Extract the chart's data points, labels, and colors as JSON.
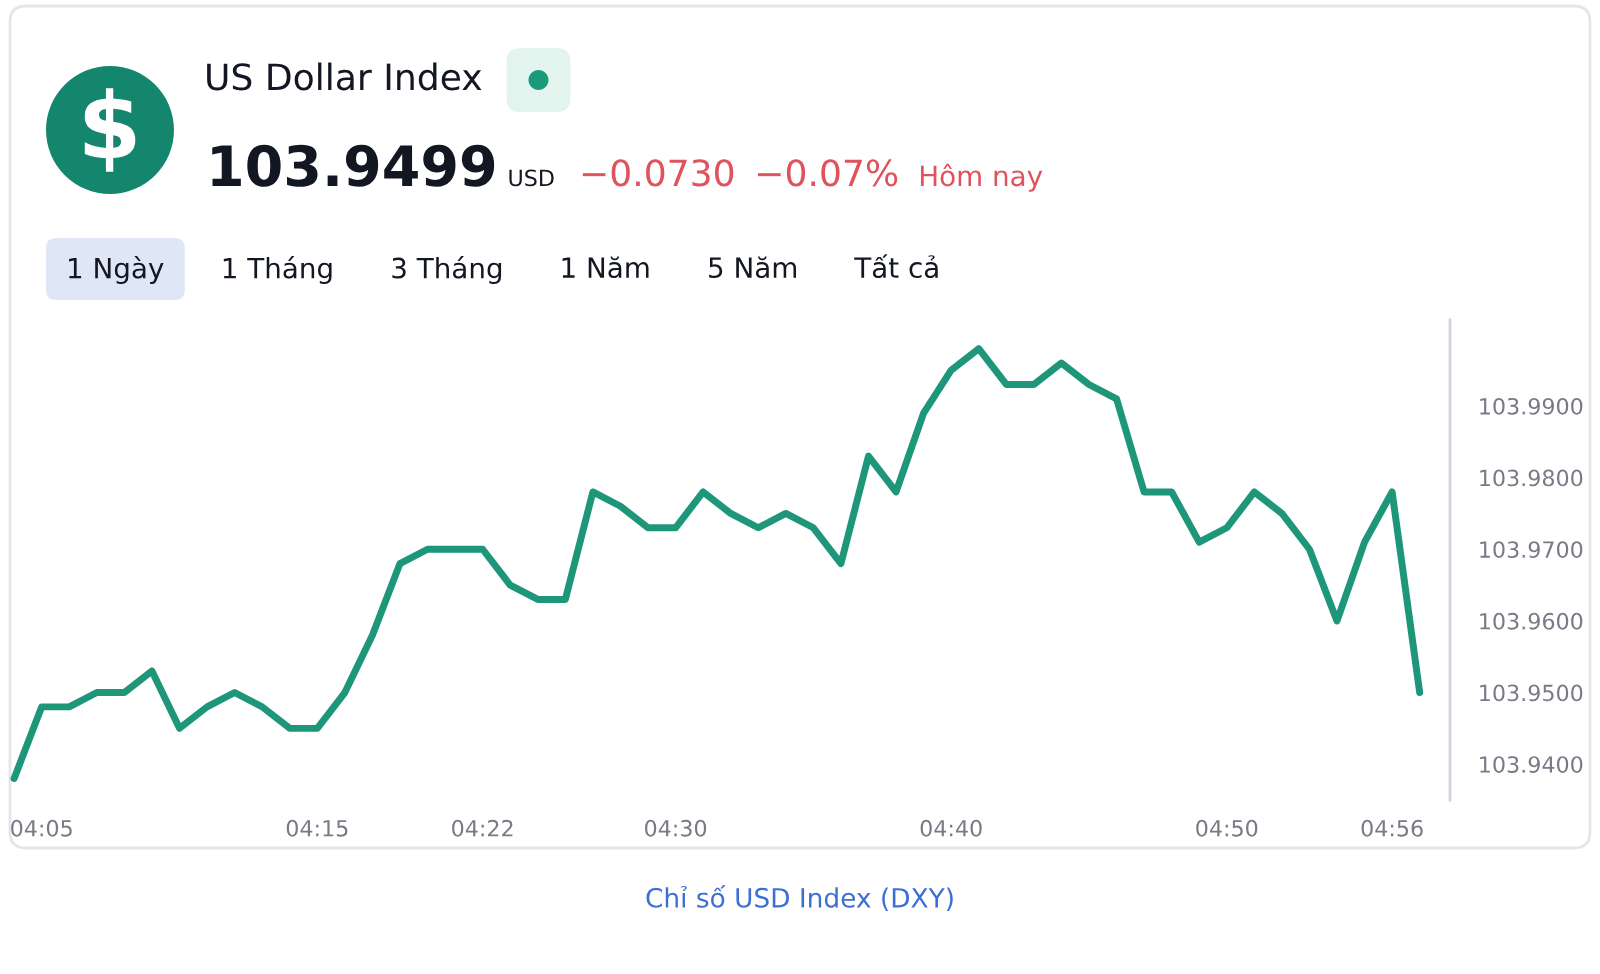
{
  "chart_data": {
    "type": "line",
    "title": "US Dollar Index",
    "categories": [
      null,
      "04:05",
      null,
      null,
      null,
      null,
      null,
      null,
      null,
      null,
      null,
      "04:15",
      null,
      null,
      null,
      null,
      null,
      "04:22",
      null,
      null,
      null,
      null,
      null,
      null,
      "04:30",
      null,
      null,
      null,
      null,
      null,
      null,
      null,
      null,
      null,
      "04:40",
      null,
      null,
      null,
      null,
      null,
      null,
      null,
      null,
      null,
      "04:50",
      null,
      null,
      null,
      null,
      null,
      "04:56",
      null
    ],
    "series": [
      {
        "color": "#1e967a",
        "values": [
          103.938,
          103.948,
          103.948,
          103.95,
          103.95,
          103.953,
          103.945,
          103.948,
          103.95,
          103.948,
          103.945,
          103.945,
          103.95,
          103.958,
          103.968,
          103.97,
          103.97,
          103.97,
          103.965,
          103.963,
          103.963,
          103.978,
          103.976,
          103.973,
          103.973,
          103.978,
          103.975,
          103.973,
          103.975,
          103.973,
          103.968,
          103.983,
          103.978,
          103.989,
          103.995,
          103.998,
          103.993,
          103.993,
          103.996,
          103.993,
          103.991,
          103.978,
          103.978,
          103.971,
          103.973,
          103.978,
          103.975,
          103.97,
          103.96,
          103.971,
          103.978,
          103.95
        ]
      }
    ],
    "ylim": [
      103.935,
      104.002
    ],
    "yticks": [
      {
        "value": 103.94,
        "label": "103.9400"
      },
      {
        "value": 103.95,
        "label": "103.9500"
      },
      {
        "value": 103.96,
        "label": "103.9600"
      },
      {
        "value": 103.97,
        "label": "103.9700"
      },
      {
        "value": 103.98,
        "label": "103.9800"
      },
      {
        "value": 103.99,
        "label": "103.9900"
      }
    ],
    "annotations": [
      "103.9499",
      "USD",
      "−0.0730",
      "−0.07%",
      "Hôm nay",
      "1 Ngày",
      "1 Tháng",
      "3 Tháng",
      "1 Năm",
      "5 Năm",
      "Tất cả",
      "Chỉ số USD Index (DXY)"
    ]
  }
}
